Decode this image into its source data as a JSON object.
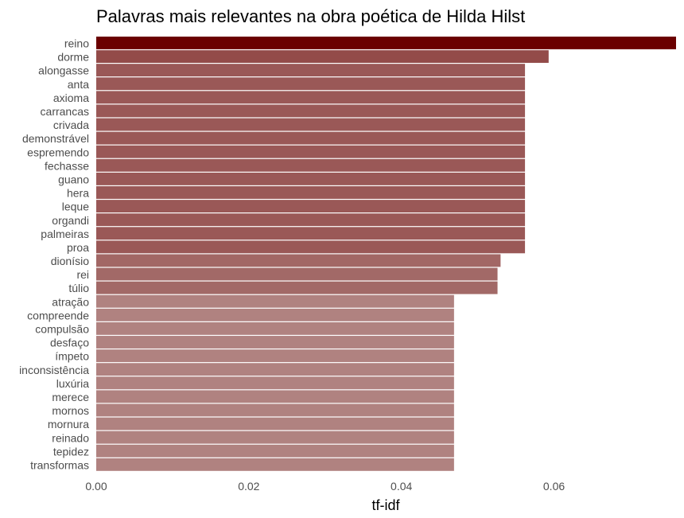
{
  "chart_data": {
    "type": "bar",
    "orientation": "horizontal",
    "title": "Palavras mais relevantes na obra poética de Hilda Hilst",
    "xlabel": "tf-idf",
    "ylabel": "",
    "xlim": [
      0,
      0.076
    ],
    "xticks": [
      0.0,
      0.02,
      0.04,
      0.06
    ],
    "xtick_labels": [
      "0.00",
      "0.02",
      "0.04",
      "0.06"
    ],
    "grid": false,
    "legend": "none",
    "color_scale": {
      "low": "#b08280",
      "high": "#6b0000"
    },
    "categories": [
      "reino",
      "dorme",
      "alongasse",
      "anta",
      "axioma",
      "carrancas",
      "crivada",
      "demonstrável",
      "espremendo",
      "fechasse",
      "guano",
      "hera",
      "leque",
      "organdi",
      "palmeiras",
      "proa",
      "dionísio",
      "rei",
      "túlio",
      "atração",
      "compreende",
      "compulsão",
      "desfaço",
      "ímpeto",
      "inconsistência",
      "luxúria",
      "merece",
      "mornos",
      "mornura",
      "reinado",
      "tepidez",
      "transformas"
    ],
    "values": [
      0.076,
      0.0593,
      0.0562,
      0.0562,
      0.0562,
      0.0562,
      0.0562,
      0.0562,
      0.0562,
      0.0562,
      0.0562,
      0.0562,
      0.0562,
      0.0562,
      0.0562,
      0.0562,
      0.053,
      0.0526,
      0.0526,
      0.0469,
      0.0469,
      0.0469,
      0.0469,
      0.0469,
      0.0469,
      0.0469,
      0.0469,
      0.0469,
      0.0469,
      0.0469,
      0.0469,
      0.0469
    ]
  }
}
